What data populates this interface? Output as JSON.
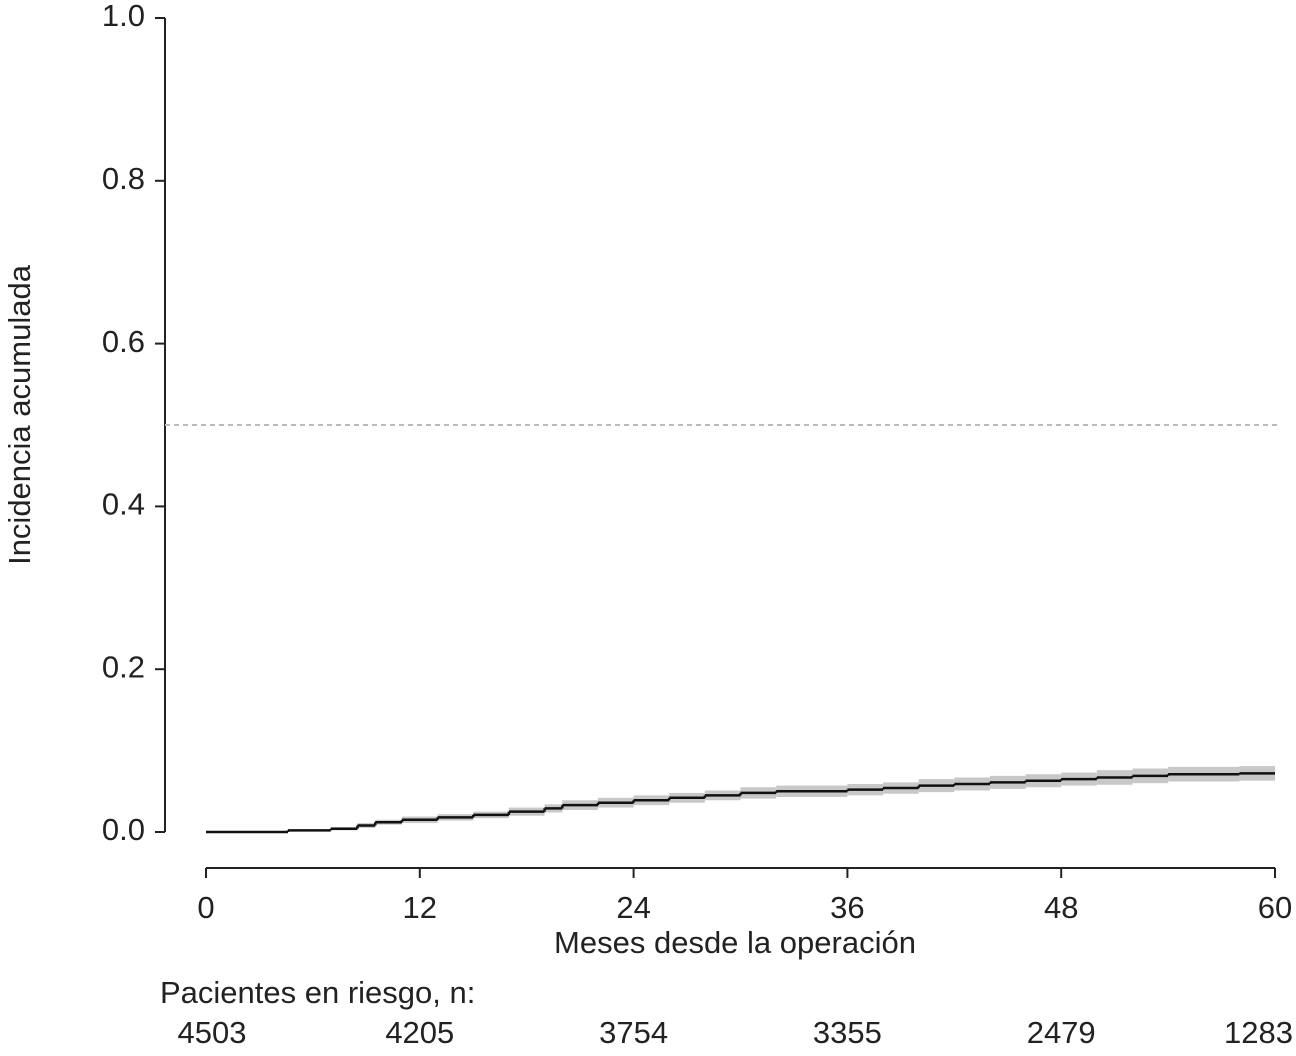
{
  "chart_data": {
    "type": "step",
    "xlabel": "Meses desde la operación",
    "ylabel": "Incidencia acumulada",
    "xlim": [
      0,
      60
    ],
    "ylim": [
      0,
      1
    ],
    "xticks": [
      0,
      12,
      24,
      36,
      48,
      60
    ],
    "yticks": [
      {
        "value": 0,
        "label": "0.0"
      },
      0.2,
      0.4,
      0.6,
      0.8,
      {
        "value": 1,
        "label": "1.0"
      }
    ],
    "reference_line": 0.5,
    "x": [
      0,
      4.6,
      7,
      8.5,
      9.5,
      11,
      13,
      15,
      17,
      19,
      20,
      22,
      24,
      26,
      28,
      30,
      32,
      36,
      38,
      40,
      42,
      44,
      46,
      48,
      50,
      52,
      54,
      58
    ],
    "series": [
      {
        "name": "estimate",
        "color": "#111111",
        "values": [
          0,
          0.002,
          0.004,
          0.008,
          0.012,
          0.015,
          0.018,
          0.021,
          0.025,
          0.029,
          0.033,
          0.036,
          0.039,
          0.042,
          0.045,
          0.048,
          0.05,
          0.052,
          0.054,
          0.057,
          0.059,
          0.061,
          0.063,
          0.065,
          0.067,
          0.069,
          0.071,
          0.072
        ]
      },
      {
        "name": "lower",
        "color": "#c8c8c8",
        "values": [
          0,
          0.001,
          0.002,
          0.005,
          0.009,
          0.011,
          0.014,
          0.017,
          0.02,
          0.024,
          0.027,
          0.03,
          0.033,
          0.036,
          0.039,
          0.041,
          0.043,
          0.045,
          0.047,
          0.049,
          0.051,
          0.053,
          0.055,
          0.057,
          0.058,
          0.06,
          0.062,
          0.063
        ]
      },
      {
        "name": "upper",
        "color": "#c8c8c8",
        "values": [
          0,
          0.003,
          0.006,
          0.011,
          0.015,
          0.019,
          0.022,
          0.025,
          0.03,
          0.034,
          0.039,
          0.042,
          0.045,
          0.048,
          0.051,
          0.055,
          0.057,
          0.059,
          0.061,
          0.065,
          0.067,
          0.069,
          0.071,
          0.073,
          0.076,
          0.078,
          0.08,
          0.081
        ]
      }
    ],
    "at_risk": {
      "label": "Pacientes en riesgo, n:",
      "values": [
        4503,
        4205,
        3754,
        3355,
        2479,
        1283
      ]
    }
  }
}
